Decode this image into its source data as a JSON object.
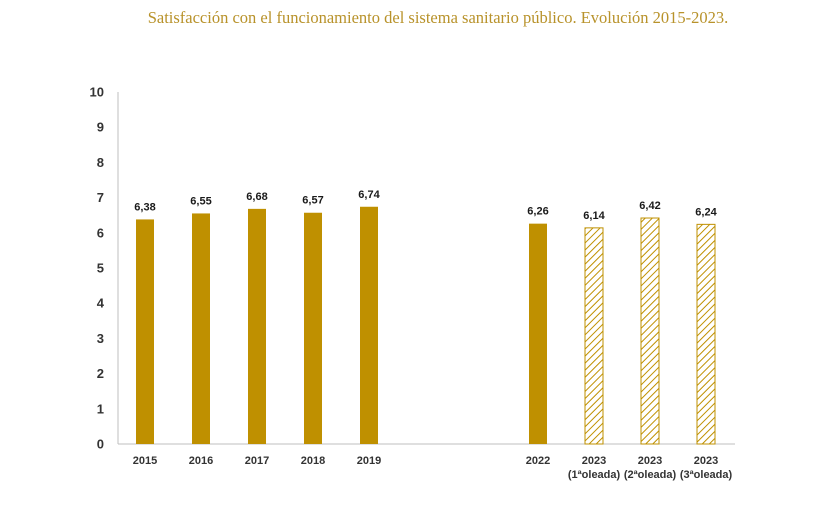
{
  "title": "Satisfacción con el funcionamiento del sistema sanitario público. Evolución 2015-2023.",
  "colors": {
    "bar": "#bf9000",
    "title": "#b8922a",
    "axis": "#bfbfbf",
    "text": "#333333"
  },
  "chart_data": {
    "type": "bar",
    "title": "Satisfacción con el funcionamiento del sistema sanitario público. Evolución 2015-2023.",
    "xlabel": "",
    "ylabel": "",
    "ylim": [
      0,
      10
    ],
    "yticks": [
      0,
      1,
      2,
      3,
      4,
      5,
      6,
      7,
      8,
      9,
      10
    ],
    "grid": false,
    "legend": "none",
    "categories": [
      [
        "2015"
      ],
      [
        "2016"
      ],
      [
        "2017"
      ],
      [
        "2018"
      ],
      [
        "2019"
      ],
      [
        "2022"
      ],
      [
        "2023",
        "(1ªoleada)"
      ],
      [
        "2023",
        "(2ªoleada)"
      ],
      [
        "2023",
        "(3ªoleada)"
      ]
    ],
    "values": [
      6.38,
      6.55,
      6.68,
      6.57,
      6.74,
      6.26,
      6.14,
      6.42,
      6.24
    ],
    "value_labels": [
      "6,38",
      "6,55",
      "6,68",
      "6,57",
      "6,74",
      "6,26",
      "6,14",
      "6,42",
      "6,24"
    ],
    "fill": [
      "solid",
      "solid",
      "solid",
      "solid",
      "solid",
      "solid",
      "hatched",
      "hatched",
      "hatched"
    ]
  }
}
